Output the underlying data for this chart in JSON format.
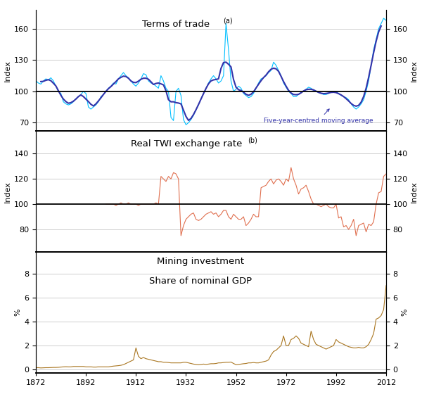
{
  "title1": "Terms of trade",
  "title1_super": "(a)",
  "title2": "Real TWI exchange rate",
  "title2_super": "(b)",
  "title3_line1": "Mining investment",
  "title3_line2": "Share of nominal GDP",
  "ylabel1": "Index",
  "ylabel2": "Index",
  "ylabel3": "%",
  "ylim1": [
    62,
    178
  ],
  "ylim2": [
    62,
    158
  ],
  "ylim3": [
    -0.3,
    9.8
  ],
  "yticks1": [
    70,
    100,
    130,
    160
  ],
  "yticks2": [
    80,
    100,
    120,
    140
  ],
  "yticks3": [
    0,
    2,
    4,
    6,
    8
  ],
  "hline1": 100,
  "hline2": 100,
  "xstart": 1872,
  "xend": 2012,
  "xticks": [
    1872,
    1892,
    1912,
    1932,
    1952,
    1972,
    1992,
    2012
  ],
  "color_tot_raw": "#00bfff",
  "color_tot_ma": "#3333aa",
  "color_twi": "#e07050",
  "color_mining": "#aa7722",
  "grid_color": "#bbbbbb",
  "label_ma": "Five-year-centred moving average",
  "background": "#ffffff"
}
